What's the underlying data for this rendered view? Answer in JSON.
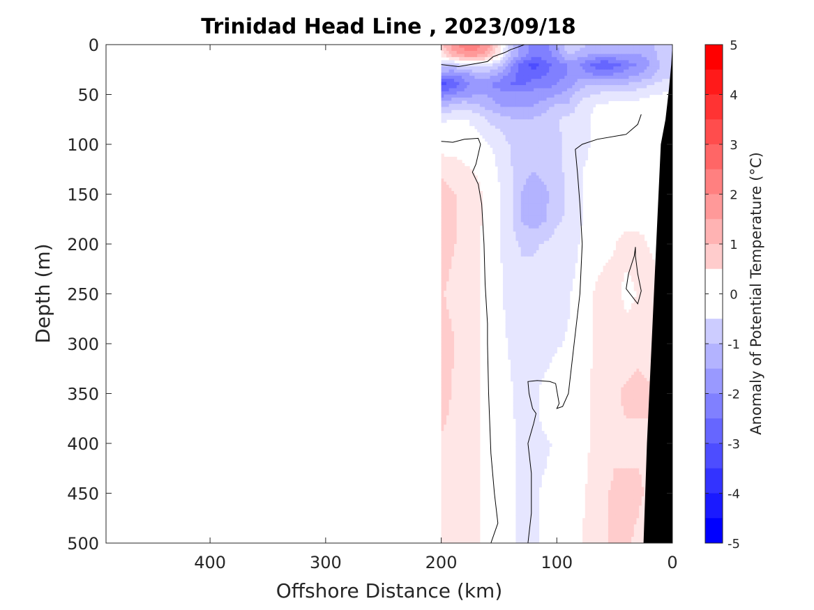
{
  "chart_data": {
    "type": "heatmap",
    "title": "Trinidad Head Line , 2023/09/18",
    "xlabel": "Offshore Distance (km)",
    "ylabel": "Depth (m)",
    "xlim": [
      490,
      0
    ],
    "ylim": [
      0,
      500
    ],
    "x_ticks": [
      400,
      300,
      200,
      100,
      0
    ],
    "y_ticks": [
      0,
      50,
      100,
      150,
      200,
      250,
      300,
      350,
      400,
      450,
      500
    ],
    "x_tick_labels": [
      "400",
      "300",
      "200",
      "100",
      "0"
    ],
    "y_tick_labels": [
      "0",
      "50",
      "100",
      "150",
      "200",
      "250",
      "300",
      "350",
      "400",
      "450",
      "500"
    ],
    "colorbar": {
      "label": "Anomaly of Potential Temperature (°C)",
      "range": [
        -5,
        5
      ],
      "step": 0.5,
      "tick_values": [
        5,
        4,
        3,
        2,
        1,
        0,
        -1,
        -2,
        -3,
        -4,
        -5
      ],
      "tick_labels": [
        "5",
        "4",
        "3",
        "2",
        "1",
        "0",
        "-1",
        "-2",
        "-3",
        "-4",
        "-5"
      ]
    },
    "colors": {
      "positive_max": "#ff0000",
      "neutral": "#ffffff",
      "negative_max": "#0000ff",
      "bathymetry": "#000000",
      "contour": "#000000"
    },
    "data_extent_km": [
      200,
      0
    ],
    "field": {
      "x": [
        200,
        190,
        180,
        170,
        160,
        150,
        140,
        130,
        120,
        110,
        100,
        90,
        80,
        70,
        60,
        50,
        40,
        30,
        20,
        10,
        0
      ],
      "depth": [
        0,
        10,
        20,
        30,
        40,
        50,
        60,
        75,
        100,
        125,
        150,
        175,
        200,
        250,
        300,
        350,
        400,
        450,
        500
      ],
      "values": [
        [
          1.0,
          2.0,
          2.5,
          2.5,
          2.0,
          0.5,
          -1.0,
          -2.0,
          -2.5,
          -2.5,
          -1.8,
          -0.8,
          -1.0,
          -1.5,
          -1.5,
          -1.5,
          -1.5,
          -1.5,
          -1.5,
          -1.0,
          -0.8
        ],
        [
          0.5,
          1.5,
          2.0,
          2.0,
          1.5,
          0.3,
          -1.2,
          -2.0,
          -2.5,
          -2.5,
          -2.0,
          -1.2,
          -1.5,
          -1.8,
          -1.8,
          -1.8,
          -1.8,
          -1.8,
          -1.6,
          -1.0,
          -0.8
        ],
        [
          -1.0,
          -1.0,
          -0.5,
          -0.5,
          -0.5,
          -1.0,
          -2.0,
          -3.0,
          -3.5,
          -3.0,
          -2.5,
          -2.2,
          -2.2,
          -2.8,
          -3.2,
          -3.0,
          -2.5,
          -2.2,
          -1.8,
          -1.2,
          -0.8
        ],
        [
          -2.0,
          -2.2,
          -2.0,
          -1.5,
          -1.5,
          -1.8,
          -2.5,
          -3.0,
          -3.0,
          -2.8,
          -2.5,
          -2.2,
          -2.0,
          -2.2,
          -2.5,
          -2.2,
          -2.0,
          -1.8,
          -1.5,
          -1.0,
          -0.8
        ],
        [
          -3.5,
          -3.2,
          -2.5,
          -2.0,
          -2.2,
          -2.5,
          -2.8,
          -2.8,
          -2.5,
          -2.5,
          -2.2,
          -2.0,
          -1.5,
          -1.2,
          -1.2,
          -1.2,
          -1.2,
          -1.0,
          -0.8,
          -0.6,
          -0.5
        ],
        [
          -2.5,
          -2.2,
          -2.0,
          -1.8,
          -1.8,
          -2.0,
          -2.0,
          -2.0,
          -2.0,
          -2.0,
          -1.8,
          -1.5,
          -1.0,
          -0.8,
          -0.6,
          -0.5,
          -0.5,
          -0.5,
          -0.3,
          -0.2,
          -0.1
        ],
        [
          -1.5,
          -1.2,
          -1.0,
          -1.2,
          -1.5,
          -1.8,
          -1.8,
          -1.8,
          -1.8,
          -1.5,
          -1.2,
          -1.2,
          -0.6,
          -0.3,
          -0.2,
          -0.1,
          0.0,
          0.0,
          0.0,
          0.0,
          0.0
        ],
        [
          -0.3,
          -0.2,
          -0.2,
          -0.4,
          -0.8,
          -1.0,
          -1.2,
          -1.2,
          -1.2,
          -1.0,
          -0.8,
          -0.6,
          -0.5,
          -0.2,
          0.0,
          0.0,
          0.0,
          0.0,
          0.0,
          0.0,
          0.0
        ],
        [
          0.0,
          0.0,
          0.0,
          0.0,
          -0.2,
          -0.4,
          -0.8,
          -1.0,
          -1.2,
          -1.0,
          -0.8,
          -0.7,
          -0.5,
          -0.2,
          0.0,
          0.0,
          0.0,
          0.0,
          0.0,
          0.0,
          0.0
        ],
        [
          0.6,
          0.5,
          0.3,
          0.2,
          0.0,
          -0.3,
          -0.7,
          -1.0,
          -1.2,
          -1.0,
          -0.8,
          -0.7,
          -0.3,
          -0.1,
          0.0,
          0.0,
          0.0,
          0.0,
          0.0,
          0.0,
          0.0
        ],
        [
          1.0,
          0.8,
          0.6,
          0.4,
          0.1,
          -0.2,
          -0.6,
          -1.3,
          -1.7,
          -1.4,
          -0.9,
          -0.7,
          -0.3,
          -0.1,
          0.0,
          0.0,
          0.0,
          0.0,
          0.0,
          0.0,
          0.0
        ],
        [
          1.1,
          0.8,
          0.6,
          0.4,
          0.1,
          -0.2,
          -0.6,
          -1.3,
          -1.6,
          -1.3,
          -0.8,
          -0.7,
          -0.3,
          -0.1,
          0.0,
          0.0,
          0.0,
          0.0,
          0.0,
          0.0,
          0.0
        ],
        [
          1.1,
          0.8,
          0.6,
          0.3,
          0.1,
          -0.2,
          -0.6,
          -0.8,
          -0.8,
          -0.7,
          -0.6,
          -0.6,
          -0.2,
          0.0,
          0.0,
          0.2,
          0.5,
          0.5,
          0.2,
          0.0,
          0.0
        ],
        [
          0.8,
          0.6,
          0.5,
          0.3,
          0.1,
          -0.1,
          -0.5,
          -0.6,
          -0.6,
          -0.6,
          -0.5,
          -0.3,
          0.0,
          0.2,
          0.5,
          0.6,
          0.0,
          0.3,
          0.6,
          0.3,
          0.0
        ],
        [
          1.0,
          0.8,
          0.5,
          0.3,
          0.1,
          -0.1,
          -0.3,
          -0.6,
          -0.6,
          -0.6,
          -0.3,
          -0.2,
          0.0,
          0.2,
          0.5,
          0.6,
          0.6,
          0.7,
          0.6,
          0.5,
          0.5
        ],
        [
          1.0,
          0.7,
          0.5,
          0.3,
          0.1,
          -0.1,
          -0.2,
          -0.4,
          -0.4,
          0.0,
          0.2,
          -0.1,
          0.0,
          0.3,
          0.5,
          0.7,
          0.8,
          0.8,
          0.8,
          0.8,
          0.6
        ],
        [
          0.7,
          0.6,
          0.5,
          0.3,
          0.1,
          -0.1,
          -0.2,
          -0.3,
          -0.3,
          -0.3,
          -0.2,
          -0.1,
          0.0,
          0.3,
          0.6,
          0.7,
          0.7,
          0.7,
          0.7,
          0.7,
          0.6
        ],
        [
          0.6,
          0.6,
          0.5,
          0.3,
          0.1,
          -0.1,
          -0.2,
          -0.3,
          -0.3,
          -0.2,
          -0.1,
          -0.1,
          0.1,
          0.4,
          0.7,
          0.8,
          0.8,
          0.8,
          0.7,
          0.7,
          0.6
        ],
        [
          0.6,
          0.6,
          0.5,
          0.3,
          0.1,
          -0.1,
          -0.2,
          -0.3,
          -0.3,
          -0.2,
          -0.1,
          0.0,
          0.2,
          0.5,
          0.7,
          0.8,
          0.8,
          0.7,
          0.6,
          0.6,
          0.6
        ]
      ]
    },
    "bottom_profile": {
      "x": [
        0,
        1,
        3,
        6,
        10,
        14,
        18,
        22,
        25
      ],
      "depth": [
        0,
        20,
        45,
        75,
        100,
        200,
        300,
        400,
        500
      ]
    },
    "contour_lines": [
      {
        "level": 0,
        "points": [
          [
            200,
            20
          ],
          [
            185,
            22
          ],
          [
            175,
            20
          ],
          [
            165,
            18
          ],
          [
            160,
            17
          ],
          [
            155,
            12
          ],
          [
            145,
            8
          ],
          [
            140,
            5
          ],
          [
            135,
            3
          ],
          [
            128,
            0
          ]
        ]
      },
      {
        "level": 0,
        "points": [
          [
            200,
            97
          ],
          [
            190,
            98
          ],
          [
            180,
            95
          ],
          [
            168,
            94
          ],
          [
            166,
            100
          ],
          [
            170,
            120
          ],
          [
            173,
            128
          ],
          [
            168,
            140
          ],
          [
            165,
            160
          ],
          [
            163,
            200
          ],
          [
            162,
            240
          ],
          [
            160,
            280
          ],
          [
            160,
            300
          ],
          [
            159,
            350
          ],
          [
            157,
            410
          ],
          [
            154,
            450
          ],
          [
            151,
            480
          ],
          [
            157,
            500
          ]
        ]
      },
      {
        "level": 0,
        "points": [
          [
            125,
            500
          ],
          [
            122,
            470
          ],
          [
            122,
            430
          ],
          [
            125,
            400
          ],
          [
            120,
            380
          ],
          [
            118,
            370
          ],
          [
            121,
            365
          ],
          [
            124,
            350
          ],
          [
            125,
            338
          ],
          [
            117,
            337
          ],
          [
            106,
            338
          ],
          [
            101,
            340
          ],
          [
            98,
            360
          ],
          [
            100,
            365
          ],
          [
            95,
            363
          ],
          [
            90,
            350
          ],
          [
            85,
            300
          ],
          [
            80,
            250
          ],
          [
            78,
            200
          ],
          [
            80,
            160
          ],
          [
            82,
            130
          ],
          [
            84,
            105
          ],
          [
            78,
            100
          ],
          [
            65,
            95
          ],
          [
            40,
            90
          ],
          [
            30,
            80
          ],
          [
            27,
            70
          ]
        ]
      },
      {
        "level": 0,
        "points": [
          [
            32,
            203
          ],
          [
            33,
            212
          ],
          [
            38,
            230
          ],
          [
            40,
            245
          ],
          [
            30,
            260
          ],
          [
            27,
            247
          ],
          [
            30,
            230
          ],
          [
            32,
            212
          ],
          [
            32,
            203
          ]
        ]
      }
    ]
  }
}
